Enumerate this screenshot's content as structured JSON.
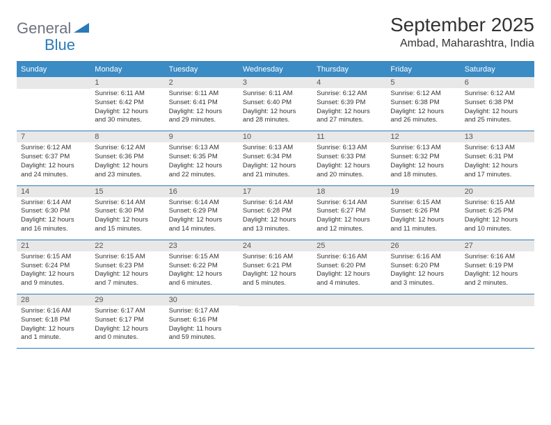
{
  "logo": {
    "general": "General",
    "blue": "Blue"
  },
  "title": "September 2025",
  "location": "Ambad, Maharashtra, India",
  "header_bg": "#3b8bc4",
  "border_color": "#2a7ab8",
  "daynum_bg": "#e8e8e8",
  "text_color": "#333333",
  "days_of_week": [
    "Sunday",
    "Monday",
    "Tuesday",
    "Wednesday",
    "Thursday",
    "Friday",
    "Saturday"
  ],
  "weeks": [
    [
      null,
      {
        "n": "1",
        "sr": "6:11 AM",
        "ss": "6:42 PM",
        "dl": "12 hours and 30 minutes."
      },
      {
        "n": "2",
        "sr": "6:11 AM",
        "ss": "6:41 PM",
        "dl": "12 hours and 29 minutes."
      },
      {
        "n": "3",
        "sr": "6:11 AM",
        "ss": "6:40 PM",
        "dl": "12 hours and 28 minutes."
      },
      {
        "n": "4",
        "sr": "6:12 AM",
        "ss": "6:39 PM",
        "dl": "12 hours and 27 minutes."
      },
      {
        "n": "5",
        "sr": "6:12 AM",
        "ss": "6:38 PM",
        "dl": "12 hours and 26 minutes."
      },
      {
        "n": "6",
        "sr": "6:12 AM",
        "ss": "6:38 PM",
        "dl": "12 hours and 25 minutes."
      }
    ],
    [
      {
        "n": "7",
        "sr": "6:12 AM",
        "ss": "6:37 PM",
        "dl": "12 hours and 24 minutes."
      },
      {
        "n": "8",
        "sr": "6:12 AM",
        "ss": "6:36 PM",
        "dl": "12 hours and 23 minutes."
      },
      {
        "n": "9",
        "sr": "6:13 AM",
        "ss": "6:35 PM",
        "dl": "12 hours and 22 minutes."
      },
      {
        "n": "10",
        "sr": "6:13 AM",
        "ss": "6:34 PM",
        "dl": "12 hours and 21 minutes."
      },
      {
        "n": "11",
        "sr": "6:13 AM",
        "ss": "6:33 PM",
        "dl": "12 hours and 20 minutes."
      },
      {
        "n": "12",
        "sr": "6:13 AM",
        "ss": "6:32 PM",
        "dl": "12 hours and 18 minutes."
      },
      {
        "n": "13",
        "sr": "6:13 AM",
        "ss": "6:31 PM",
        "dl": "12 hours and 17 minutes."
      }
    ],
    [
      {
        "n": "14",
        "sr": "6:14 AM",
        "ss": "6:30 PM",
        "dl": "12 hours and 16 minutes."
      },
      {
        "n": "15",
        "sr": "6:14 AM",
        "ss": "6:30 PM",
        "dl": "12 hours and 15 minutes."
      },
      {
        "n": "16",
        "sr": "6:14 AM",
        "ss": "6:29 PM",
        "dl": "12 hours and 14 minutes."
      },
      {
        "n": "17",
        "sr": "6:14 AM",
        "ss": "6:28 PM",
        "dl": "12 hours and 13 minutes."
      },
      {
        "n": "18",
        "sr": "6:14 AM",
        "ss": "6:27 PM",
        "dl": "12 hours and 12 minutes."
      },
      {
        "n": "19",
        "sr": "6:15 AM",
        "ss": "6:26 PM",
        "dl": "12 hours and 11 minutes."
      },
      {
        "n": "20",
        "sr": "6:15 AM",
        "ss": "6:25 PM",
        "dl": "12 hours and 10 minutes."
      }
    ],
    [
      {
        "n": "21",
        "sr": "6:15 AM",
        "ss": "6:24 PM",
        "dl": "12 hours and 9 minutes."
      },
      {
        "n": "22",
        "sr": "6:15 AM",
        "ss": "6:23 PM",
        "dl": "12 hours and 7 minutes."
      },
      {
        "n": "23",
        "sr": "6:15 AM",
        "ss": "6:22 PM",
        "dl": "12 hours and 6 minutes."
      },
      {
        "n": "24",
        "sr": "6:16 AM",
        "ss": "6:21 PM",
        "dl": "12 hours and 5 minutes."
      },
      {
        "n": "25",
        "sr": "6:16 AM",
        "ss": "6:20 PM",
        "dl": "12 hours and 4 minutes."
      },
      {
        "n": "26",
        "sr": "6:16 AM",
        "ss": "6:20 PM",
        "dl": "12 hours and 3 minutes."
      },
      {
        "n": "27",
        "sr": "6:16 AM",
        "ss": "6:19 PM",
        "dl": "12 hours and 2 minutes."
      }
    ],
    [
      {
        "n": "28",
        "sr": "6:16 AM",
        "ss": "6:18 PM",
        "dl": "12 hours and 1 minute."
      },
      {
        "n": "29",
        "sr": "6:17 AM",
        "ss": "6:17 PM",
        "dl": "12 hours and 0 minutes."
      },
      {
        "n": "30",
        "sr": "6:17 AM",
        "ss": "6:16 PM",
        "dl": "11 hours and 59 minutes."
      },
      null,
      null,
      null,
      null
    ]
  ],
  "labels": {
    "sunrise": "Sunrise: ",
    "sunset": "Sunset: ",
    "daylight": "Daylight: "
  }
}
